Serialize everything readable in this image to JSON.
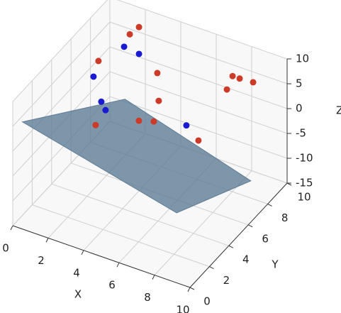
{
  "chart_data": {
    "type": "scatter3d",
    "xlabel": "X",
    "ylabel": "Y",
    "zlabel": "Z",
    "xlim": [
      0,
      10
    ],
    "ylim": [
      0,
      10
    ],
    "zlim": [
      -15,
      10
    ],
    "xticks": [
      0,
      2,
      4,
      6,
      8,
      10
    ],
    "yticks": [
      0,
      2,
      4,
      6,
      8,
      10
    ],
    "zticks": [
      -15,
      -10,
      -5,
      0,
      5,
      10
    ],
    "grid": true,
    "surface": {
      "color": "#5f7d96",
      "x": [
        0,
        1.4,
        8.5,
        8.7
      ],
      "y": [
        1,
        9,
        9,
        1
      ],
      "z": [
        3.8,
        -6.7,
        -14.3,
        -3.7
      ]
    },
    "series": [
      {
        "color": "#cc3a28",
        "x": [
          2.19,
          1.67,
          1.0,
          4.32,
          4.4,
          0.84,
          3.28,
          4.12,
          6.64,
          7.47,
          7.87,
          8.63,
          7.15
        ],
        "y": [
          9,
          9,
          7,
          7,
          7,
          7,
          7,
          7,
          7,
          9,
          9,
          9,
          9
        ],
        "z": [
          8.8,
          6.7,
          4.7,
          6.4,
          0.9,
          -8.4,
          -4.5,
          -3.6,
          -4.3,
          5.5,
          5.5,
          5.7,
          2.4
        ]
      },
      {
        "color": "#1a1ad0",
        "x": [
          1.35,
          2.19,
          0.72,
          1.16,
          1.4,
          5.96
        ],
        "y": [
          9,
          9,
          7,
          7,
          7,
          7
        ],
        "z": [
          3.8,
          3.4,
          1.2,
          -3.3,
          -4.7,
          -2.1
        ]
      }
    ]
  }
}
